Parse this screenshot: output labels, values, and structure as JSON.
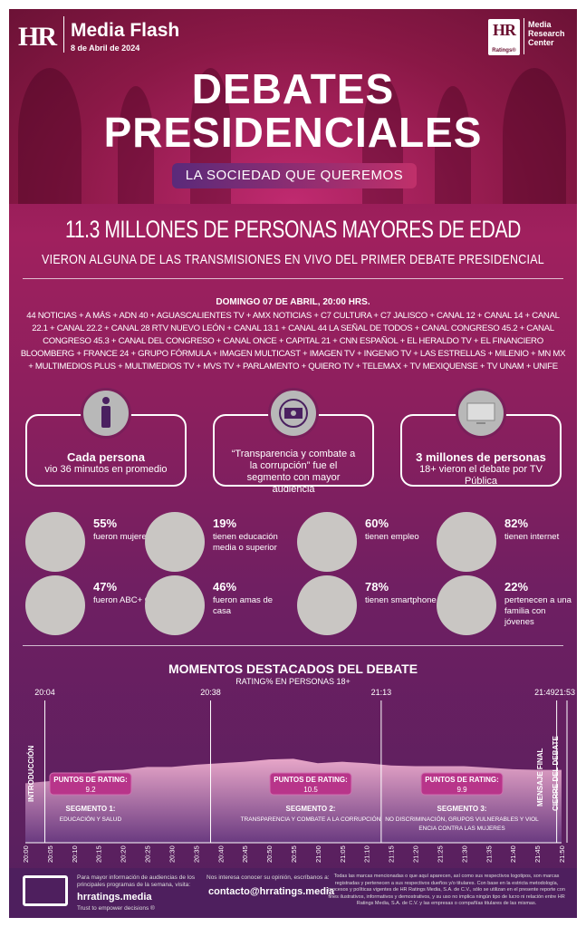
{
  "header": {
    "logo": "HR",
    "product": "Media Flash",
    "date": "8 de Abril de 2024",
    "partner_logo": "HR",
    "partner_logo_sub": "Ratings®",
    "partner_name": [
      "Media",
      "Research",
      "Center"
    ]
  },
  "title": {
    "line1": "DEBATES",
    "line2": "PRESIDENCIALES",
    "tagline": "LA SOCIEDAD QUE QUEREMOS"
  },
  "headline": {
    "main": "11.3 MILLONES DE PERSONAS MAYORES DE EDAD",
    "sub": "VIERON ALGUNA DE LAS TRANSMISIONES EN VIVO DEL PRIMER DEBATE PRESIDENCIAL"
  },
  "schedule": "DOMINGO 07 DE ABRIL, 20:00 HRS.",
  "channels": "44 NOTICIAS + A MÁS + ADN 40 + AGUASCALIENTES TV + AMX NOTICIAS + C7 CULTURA + C7 JALISCO + CANAL 12 + CANAL 14 + CANAL 22.1 + CANAL 22.2 + CANAL 28 RTV NUEVO LEÓN + CANAL 13.1 + CANAL 44 LA SEÑAL DE TODOS + CANAL CONGRESO 45.2 + CANAL CONGRESO 45.3 + CANAL DEL CONGRESO + CANAL ONCE + CAPITAL 21 + CNN ESPAÑOL + EL HERALDO TV + EL FINANCIERO BLOOMBERG + FRANCE 24 + GRUPO FÓRMULA + IMAGEN MULTICAST + IMAGEN TV + INGENIO TV + LAS ESTRELLAS + MILENIO + MN MX + MULTIMEDIOS PLUS + MULTIMEDIOS TV + MVS TV + PARLAMENTO + QUIERO TV + TELEMAX + TV MEXIQUENSE + TV UNAM + UNIFE",
  "highlights": [
    {
      "icon": "person-icon",
      "title": "Cada persona",
      "desc": "vio 36 minutos en promedio"
    },
    {
      "icon": "money-cycle-icon",
      "title": "",
      "desc": "“Transparencia y combate a la corrupción” fue el segmento con mayor audiencia"
    },
    {
      "icon": "tv-icon",
      "title": "3 millones de personas",
      "desc": "18+ vieron el debate por TV Pública"
    }
  ],
  "stats": [
    {
      "icon": "woman-icon",
      "pct": "55%",
      "desc": "fueron mujeres"
    },
    {
      "icon": "graduation-cap-icon",
      "pct": "19%",
      "desc": "tienen educación media o superior"
    },
    {
      "icon": "id-badge-icon",
      "pct": "60%",
      "desc": "tienen empleo"
    },
    {
      "icon": "wifi-icon",
      "pct": "82%",
      "desc": "tienen internet"
    },
    {
      "icon": "money-bag-icon",
      "pct": "47%",
      "desc": "fueron ABC+ C"
    },
    {
      "icon": "house-icon",
      "pct": "46%",
      "desc": "fueron amas de casa"
    },
    {
      "icon": "smartphone-icon",
      "pct": "78%",
      "desc": "tienen smartphone"
    },
    {
      "icon": "family-icon",
      "pct": "22%",
      "desc": "pertenecen a una familia con jóvenes"
    }
  ],
  "moments": {
    "title": "MOMENTOS DESTACADOS DEL DEBATE",
    "subtitle": "RATING% EN PERSONAS 18+"
  },
  "chart_data": {
    "type": "area",
    "x": [
      "20:00",
      "20:05",
      "20:10",
      "20:15",
      "20:20",
      "20:25",
      "20:30",
      "20:35",
      "20:40",
      "20:45",
      "20:50",
      "20:55",
      "21:00",
      "21:05",
      "21:10",
      "21:15",
      "21:20",
      "21:25",
      "21:30",
      "21:35",
      "21:40",
      "21:45",
      "21:50"
    ],
    "values": [
      8.0,
      8.3,
      8.8,
      9.7,
      9.8,
      10.2,
      10.2,
      10.5,
      10.7,
      10.9,
      11.2,
      11.3,
      10.7,
      10.9,
      10.7,
      10.4,
      10.3,
      10.3,
      10.3,
      10.1,
      9.9,
      9.8,
      9.8
    ],
    "markers": [
      {
        "time": "20:04",
        "minute": 4
      },
      {
        "time": "20:38",
        "minute": 38
      },
      {
        "time": "21:13",
        "minute": 73
      },
      {
        "time": "21:49",
        "minute": 109
      },
      {
        "time": "21:53",
        "minute": 113
      }
    ],
    "segments": [
      {
        "rating_label": "PUNTOS DE RATING:",
        "rating": "9.2",
        "name": "SEGMENTO 1:",
        "topic": "EDUCACIÓN Y SALUD"
      },
      {
        "rating_label": "PUNTOS DE RATING:",
        "rating": "10.5",
        "name": "SEGMENTO 2:",
        "topic": "TRANSPARENCIA Y COMBATE A LA CORRUPCIÓN"
      },
      {
        "rating_label": "PUNTOS DE RATING:",
        "rating": "9.9",
        "name": "SEGMENTO 3:",
        "topic": "NO DISCRIMINACIÓN, GRUPOS VULNERABLES Y VIOLENCIA CONTRA LAS MUJERES"
      }
    ],
    "vertical_labels": [
      "INTRODUCCIÓN",
      "MENSAJE FINAL",
      "CIERRE DEL DEBATE"
    ],
    "fill_color": "#e7a6c8"
  },
  "footer": {
    "info": "Para mayor información de audiencias de los principales programas de la semana, visita:",
    "site": "hrratings.media",
    "slogan": "Trust to empower decisions ®",
    "contact_label": "Nos interesa conocer su opinión, escríbanos a:",
    "email": "contacto@hrratings.media",
    "legal": "Todas las marcas mencionadas o que aquí aparecen, así como sus respectivos logotipos, son marcas registradas y pertenecen a sus respectivos dueños y/o titulares. Con base en la estricta metodología, procesos y políticas vigentes de HR Ratings Media, S.A. de C.V., sólo se utilizan en el presente reporte con fines ilustrativos, informativos y demostrativos, y su uso no implica ningún tipo de lucro ni relación entre HR Ratings Media, S.A. de C.V. y las empresas o compañías titulares de las mismas."
  }
}
